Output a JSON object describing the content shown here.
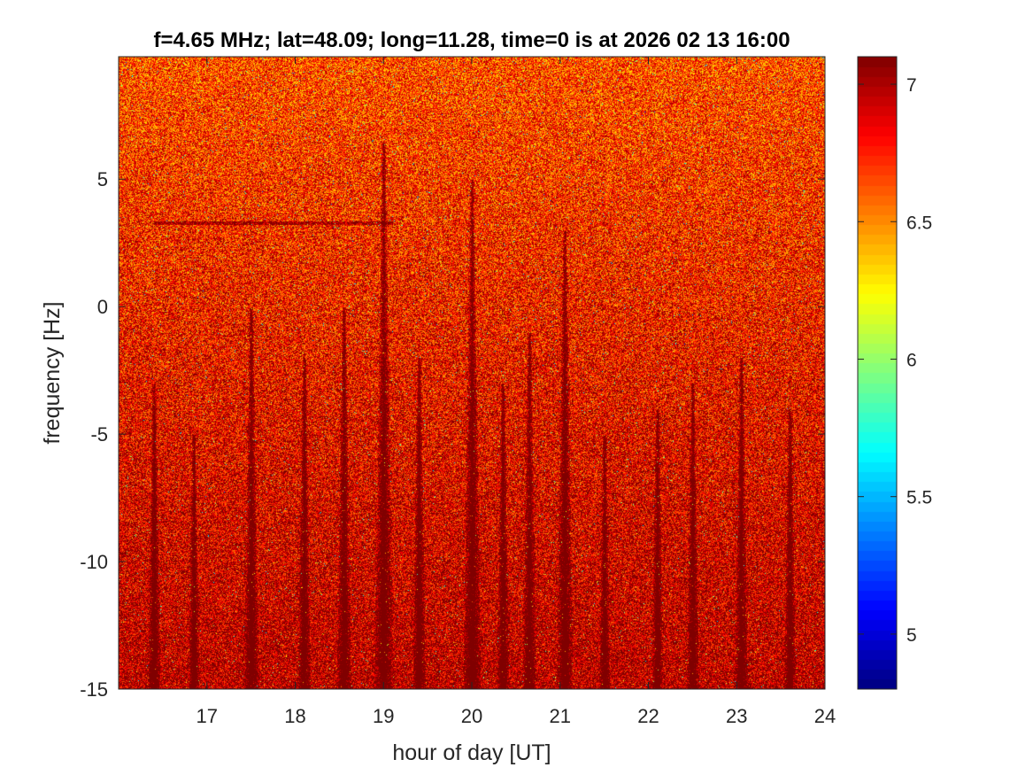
{
  "chart_data": {
    "type": "heatmap",
    "title": "f=4.65 MHz;  lat=48.09; long=11.28, time=0 is at 2026 02 13 16:00",
    "xlabel": "hour of day [UT]",
    "ylabel": "frequency [Hz]",
    "xlim": [
      16,
      24
    ],
    "ylim": [
      -15,
      9.8
    ],
    "xticks": [
      17,
      18,
      19,
      20,
      21,
      22,
      23,
      24
    ],
    "yticks": [
      -15,
      -10,
      -5,
      0,
      5
    ],
    "xtick_labels": [
      "17",
      "18",
      "19",
      "20",
      "21",
      "22",
      "23",
      "24"
    ],
    "ytick_labels": [
      "-15",
      "-10",
      "-5",
      "0",
      "5"
    ],
    "colorbar": {
      "colormap": "jet",
      "clim": [
        4.8,
        7.1
      ],
      "ticks": [
        5,
        5.5,
        6,
        6.5,
        7
      ],
      "tick_labels": [
        "5",
        "5.5",
        "6",
        "6.5",
        "7"
      ]
    },
    "grid": false,
    "background_level": 6.75,
    "dark_streaks": [
      {
        "hour": 16.4,
        "top_freq": -3
      },
      {
        "hour": 16.85,
        "top_freq": -5
      },
      {
        "hour": 17.5,
        "top_freq": 0
      },
      {
        "hour": 18.1,
        "top_freq": -2
      },
      {
        "hour": 18.55,
        "top_freq": 0
      },
      {
        "hour": 19.0,
        "top_freq": 6.5
      },
      {
        "hour": 19.4,
        "top_freq": -2
      },
      {
        "hour": 20.0,
        "top_freq": 5
      },
      {
        "hour": 20.35,
        "top_freq": -3
      },
      {
        "hour": 20.65,
        "top_freq": -1
      },
      {
        "hour": 21.05,
        "top_freq": 3
      },
      {
        "hour": 21.5,
        "top_freq": -5
      },
      {
        "hour": 22.1,
        "top_freq": -4
      },
      {
        "hour": 22.5,
        "top_freq": -3
      },
      {
        "hour": 23.05,
        "top_freq": -2
      },
      {
        "hour": 23.6,
        "top_freq": -4
      }
    ],
    "faint_trace": {
      "from_hour": 16.4,
      "to_hour": 19.1,
      "freq": 3.3
    }
  }
}
